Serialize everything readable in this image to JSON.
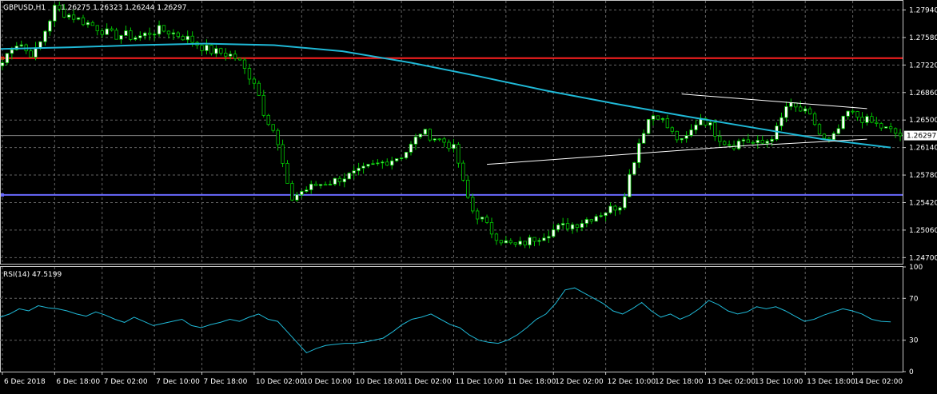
{
  "header": {
    "symbol": "GBPUSD,H1",
    "ohlc": "1.26275 1.26323 1.26244 1.26297"
  },
  "rsi_panel": {
    "title": "RSI(14) 47.5199"
  },
  "colors": {
    "background": "#000000",
    "grid": "#646464",
    "axis": "#c8c8c8",
    "bull_candle": "#ffffff",
    "bear_candle": "#000000",
    "candle_outline": "#00c800",
    "moving_average": "#1fb8d6",
    "resistance_line": "#ff2020",
    "support_line": "#6a6aff",
    "trendline": "#ffffff",
    "rsi_line": "#1fb8d6",
    "price_badge": "#ffffff"
  },
  "chart_data": [
    {
      "type": "candlestick",
      "symbol": "GBPUSD",
      "timeframe": "H1",
      "ylim": [
        1.2462,
        1.2806
      ],
      "grid": true,
      "y_ticks": [
        "1.27940",
        "1.27580",
        "1.27220",
        "1.26860",
        "1.26500",
        "1.26140",
        "1.25780",
        "1.25420",
        "1.25060",
        "1.24700"
      ],
      "x_ticks": [
        "6 Dec 2018",
        "6 Dec 18:00",
        "7 Dec 02:00",
        "7 Dec 10:00",
        "7 Dec 18:00",
        "10 Dec 02:00",
        "10 Dec 10:00",
        "10 Dec 18:00",
        "11 Dec 02:00",
        "11 Dec 10:00",
        "11 Dec 18:00",
        "12 Dec 02:00",
        "12 Dec 10:00",
        "12 Dec 18:00",
        "13 Dec 02:00",
        "13 Dec 10:00",
        "13 Dec 18:00",
        "14 Dec 02:00"
      ],
      "current_price": "1.26297",
      "horizontal_lines": [
        {
          "name": "resistance",
          "y": 1.2731
        },
        {
          "name": "support",
          "y": 1.2552
        }
      ],
      "trendlines": [
        {
          "x": [
            143,
            182
          ],
          "y": [
            1.2684,
            1.2665
          ]
        },
        {
          "x": [
            102,
            162
          ],
          "y": [
            1.2592,
            1.2619
          ]
        },
        {
          "x": [
            162,
            182
          ],
          "y": [
            1.2618,
            1.2625
          ]
        }
      ],
      "moving_average": [
        1.2743,
        1.2745,
        1.2748,
        1.275,
        1.2748,
        1.274,
        1.2725,
        1.2707,
        1.2688,
        1.2671,
        1.2655,
        1.264,
        1.2625,
        1.2614
      ],
      "candle_points": [
        1.2725,
        1.2746,
        1.2752,
        1.2736,
        1.2741,
        1.277,
        1.2797,
        1.279,
        1.2786,
        1.278,
        1.2776,
        1.277,
        1.2764,
        1.276,
        1.2762,
        1.2758,
        1.276,
        1.2765,
        1.2768,
        1.2766,
        1.2762,
        1.2758,
        1.2752,
        1.2745,
        1.274,
        1.2738,
        1.2736,
        1.273,
        1.2712,
        1.27,
        1.266,
        1.264,
        1.26,
        1.2545,
        1.2555,
        1.256,
        1.2565,
        1.2568,
        1.257,
        1.2575,
        1.2578,
        1.2582,
        1.2588,
        1.2592,
        1.2596,
        1.26,
        1.2605,
        1.2618,
        1.2635,
        1.263,
        1.2625,
        1.262,
        1.261,
        1.256,
        1.253,
        1.252,
        1.2505,
        1.2495,
        1.2488,
        1.2485,
        1.249,
        1.2495,
        1.25,
        1.2505,
        1.251,
        1.2512,
        1.2515,
        1.252,
        1.2525,
        1.253,
        1.2535,
        1.254,
        1.258,
        1.262,
        1.265,
        1.266,
        1.2645,
        1.263,
        1.262,
        1.2635,
        1.2655,
        1.2645,
        1.263,
        1.262,
        1.2618,
        1.2625,
        1.262,
        1.2618,
        1.2625,
        1.264,
        1.267,
        1.2665,
        1.266,
        1.265,
        1.2625,
        1.262,
        1.264,
        1.266,
        1.2655,
        1.265,
        1.2645,
        1.264,
        1.2635,
        1.263
      ]
    },
    {
      "type": "line",
      "name": "RSI(14)",
      "title": "RSI(14) 47.5199",
      "last_value": 47.5199,
      "ylim": [
        0,
        100
      ],
      "y_ticks": [
        100,
        70,
        30,
        0
      ],
      "levels": [
        70,
        30
      ],
      "values": [
        52,
        55,
        60,
        58,
        63,
        61,
        60,
        58,
        55,
        53,
        57,
        54,
        50,
        47,
        52,
        48,
        44,
        46,
        48,
        50,
        44,
        42,
        45,
        47,
        50,
        48,
        52,
        55,
        50,
        48,
        38,
        28,
        18,
        22,
        25,
        26,
        27,
        27,
        28,
        30,
        32,
        38,
        45,
        50,
        52,
        55,
        50,
        45,
        42,
        35,
        30,
        28,
        27,
        30,
        35,
        42,
        50,
        55,
        65,
        78,
        80,
        75,
        70,
        65,
        58,
        55,
        60,
        66,
        58,
        52,
        55,
        50,
        54,
        60,
        68,
        64,
        58,
        55,
        57,
        62,
        60,
        62,
        58,
        53,
        48,
        50,
        54,
        57,
        60,
        58,
        55,
        50,
        48,
        47.5
      ]
    }
  ]
}
